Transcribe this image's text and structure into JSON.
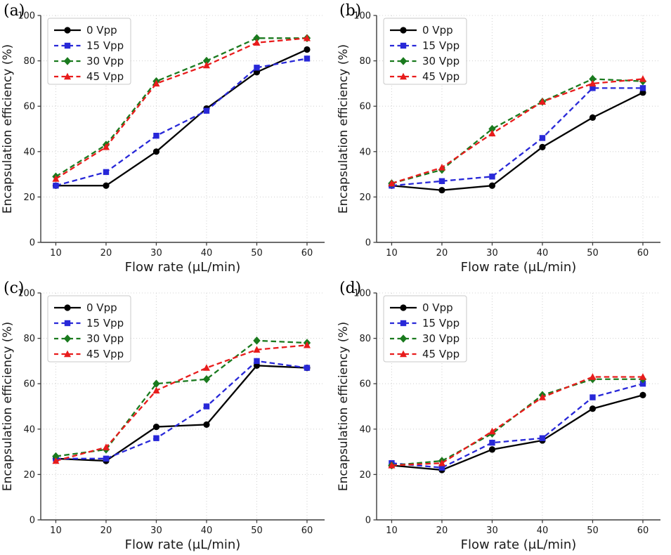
{
  "figure": {
    "background": "#ffffff",
    "grid_color": "#d4d4d4",
    "spine_color": "#3d3d3d"
  },
  "chart_data": [
    {
      "type": "line",
      "panel_label": "(a)",
      "xlabel": "Flow rate (μL/min)",
      "ylabel": "Encapsulation efficiency (%)",
      "x": [
        10,
        20,
        30,
        40,
        50,
        60
      ],
      "xticks": [
        10,
        20,
        30,
        40,
        50,
        60
      ],
      "yticks": [
        0,
        20,
        40,
        60,
        80,
        100
      ],
      "xlim": [
        7,
        63.5
      ],
      "ylim": [
        0,
        100
      ],
      "grid": true,
      "legend_position": "upper-left",
      "series": [
        {
          "name": "0 Vpp",
          "color": "#000000",
          "marker": "circle",
          "dash": "solid",
          "values": [
            25,
            25,
            40,
            59,
            75,
            85
          ]
        },
        {
          "name": "15 Vpp",
          "color": "#2828d8",
          "marker": "square",
          "dash": "dashed",
          "values": [
            25,
            31,
            47,
            58,
            77,
            81
          ]
        },
        {
          "name": "30 Vpp",
          "color": "#1a7a1e",
          "marker": "diamond",
          "dash": "dashed",
          "values": [
            29,
            43,
            71,
            80,
            90,
            90
          ]
        },
        {
          "name": "45 Vpp",
          "color": "#e81c1c",
          "marker": "triangle",
          "dash": "dashed",
          "values": [
            28,
            42,
            70,
            78,
            88,
            90
          ]
        }
      ]
    },
    {
      "type": "line",
      "panel_label": "(b)",
      "xlabel": "Flow rate (μL/min)",
      "ylabel": "Encapsulation efficiency (%)",
      "x": [
        10,
        20,
        30,
        40,
        50,
        60
      ],
      "xticks": [
        10,
        20,
        30,
        40,
        50,
        60
      ],
      "yticks": [
        0,
        20,
        40,
        60,
        80,
        100
      ],
      "xlim": [
        7,
        63.5
      ],
      "ylim": [
        0,
        100
      ],
      "grid": true,
      "legend_position": "upper-left",
      "series": [
        {
          "name": "0 Vpp",
          "color": "#000000",
          "marker": "circle",
          "dash": "solid",
          "values": [
            25,
            23,
            25,
            42,
            55,
            66
          ]
        },
        {
          "name": "15 Vpp",
          "color": "#2828d8",
          "marker": "square",
          "dash": "dashed",
          "values": [
            25,
            27,
            29,
            46,
            68,
            68
          ]
        },
        {
          "name": "30 Vpp",
          "color": "#1a7a1e",
          "marker": "diamond",
          "dash": "dashed",
          "values": [
            26,
            32,
            50,
            62,
            72,
            71
          ]
        },
        {
          "name": "45 Vpp",
          "color": "#e81c1c",
          "marker": "triangle",
          "dash": "dashed",
          "values": [
            26,
            33,
            48,
            62,
            70,
            72
          ]
        }
      ]
    },
    {
      "type": "line",
      "panel_label": "(c)",
      "xlabel": "Flow rate (μL/min)",
      "ylabel": "Encapsulation efficiency (%)",
      "x": [
        10,
        20,
        30,
        40,
        50,
        60
      ],
      "xticks": [
        10,
        20,
        30,
        40,
        50,
        60
      ],
      "yticks": [
        0,
        20,
        40,
        60,
        80,
        100
      ],
      "xlim": [
        7,
        63.5
      ],
      "ylim": [
        0,
        100
      ],
      "grid": true,
      "legend_position": "upper-left",
      "series": [
        {
          "name": "0 Vpp",
          "color": "#000000",
          "marker": "circle",
          "dash": "solid",
          "values": [
            27,
            26,
            41,
            42,
            68,
            67
          ]
        },
        {
          "name": "15 Vpp",
          "color": "#2828d8",
          "marker": "square",
          "dash": "dashed",
          "values": [
            27,
            27,
            36,
            50,
            70,
            67
          ]
        },
        {
          "name": "30 Vpp",
          "color": "#1a7a1e",
          "marker": "diamond",
          "dash": "dashed",
          "values": [
            28,
            31,
            60,
            62,
            79,
            78
          ]
        },
        {
          "name": "45 Vpp",
          "color": "#e81c1c",
          "marker": "triangle",
          "dash": "dashed",
          "values": [
            26,
            32,
            57,
            67,
            75,
            77
          ]
        }
      ]
    },
    {
      "type": "line",
      "panel_label": "(d)",
      "xlabel": "Flow rate (μL/min)",
      "ylabel": "Encapsulation efficiency (%)",
      "x": [
        10,
        20,
        30,
        40,
        50,
        60
      ],
      "xticks": [
        10,
        20,
        30,
        40,
        50,
        60
      ],
      "yticks": [
        0,
        20,
        40,
        60,
        80,
        100
      ],
      "xlim": [
        7,
        63.5
      ],
      "ylim": [
        0,
        100
      ],
      "grid": true,
      "legend_position": "upper-left",
      "series": [
        {
          "name": "0 Vpp",
          "color": "#000000",
          "marker": "circle",
          "dash": "solid",
          "values": [
            24,
            22,
            31,
            35,
            49,
            55
          ]
        },
        {
          "name": "15 Vpp",
          "color": "#2828d8",
          "marker": "square",
          "dash": "dashed",
          "values": [
            25,
            23,
            34,
            36,
            54,
            60
          ]
        },
        {
          "name": "30 Vpp",
          "color": "#1a7a1e",
          "marker": "diamond",
          "dash": "dashed",
          "values": [
            24,
            26,
            38,
            55,
            62,
            62
          ]
        },
        {
          "name": "45 Vpp",
          "color": "#e81c1c",
          "marker": "triangle",
          "dash": "dashed",
          "values": [
            24,
            25,
            39,
            54,
            63,
            63
          ]
        }
      ]
    }
  ]
}
